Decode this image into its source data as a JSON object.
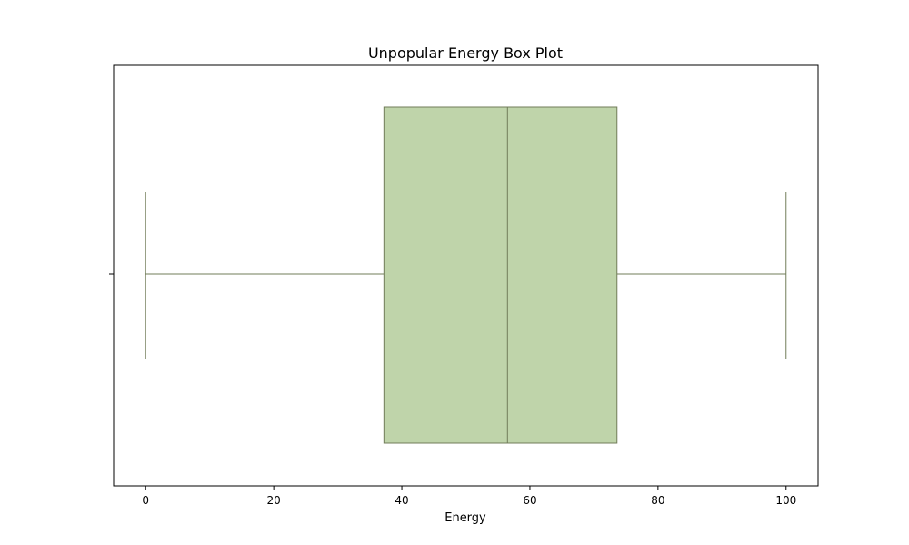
{
  "chart_data": {
    "type": "box",
    "title": "Unpopular Energy Box Plot",
    "xlabel": "Energy",
    "ylabel": "",
    "xlim": [
      -5,
      105
    ],
    "x_ticks": [
      0,
      20,
      40,
      60,
      80,
      100
    ],
    "orientation": "horizontal",
    "grid": false,
    "box": {
      "whisker_low": 0,
      "q1": 37.2,
      "median": 56.5,
      "q3": 73.6,
      "whisker_high": 100
    },
    "colors": {
      "box_fill": "#bfd4aa",
      "box_stroke": "#717c59",
      "axis": "#000000"
    }
  }
}
